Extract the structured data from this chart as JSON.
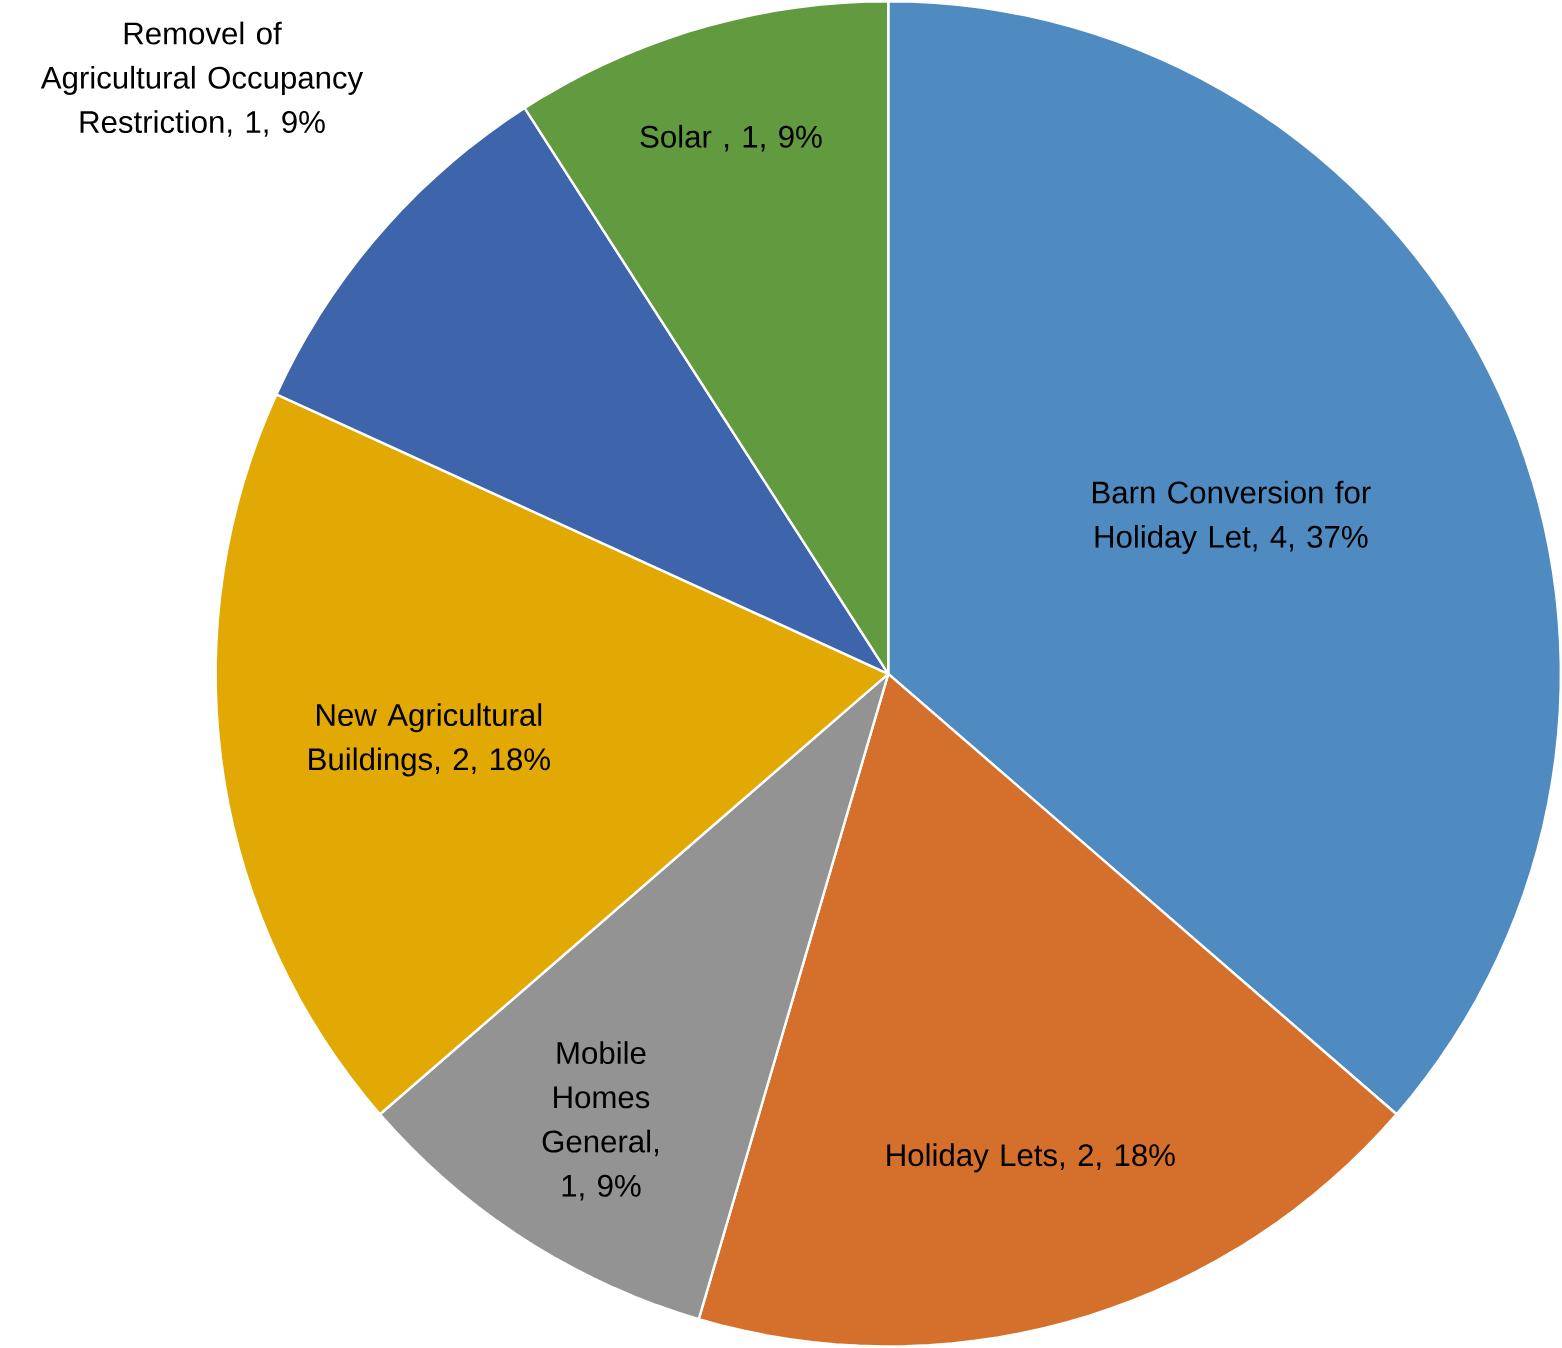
{
  "chart_data": {
    "type": "pie",
    "categories": [
      "Barn Conversion for Holiday Let, 4, 37%",
      "Holiday Lets, 2, 18%",
      "Mobile Homes General, 1, 9%",
      "New Agricultural Buildings, 2, 18%",
      "Removel of Agricultural Occupancy Restriction, 1, 9%",
      "Solar , 1, 9%"
    ],
    "values": [
      4,
      2,
      1,
      2,
      1,
      1
    ],
    "colors": [
      "#4f8bc0",
      "#d4702b",
      "#939393",
      "#e2a804",
      "#3e64ac",
      "#629b3f"
    ]
  }
}
